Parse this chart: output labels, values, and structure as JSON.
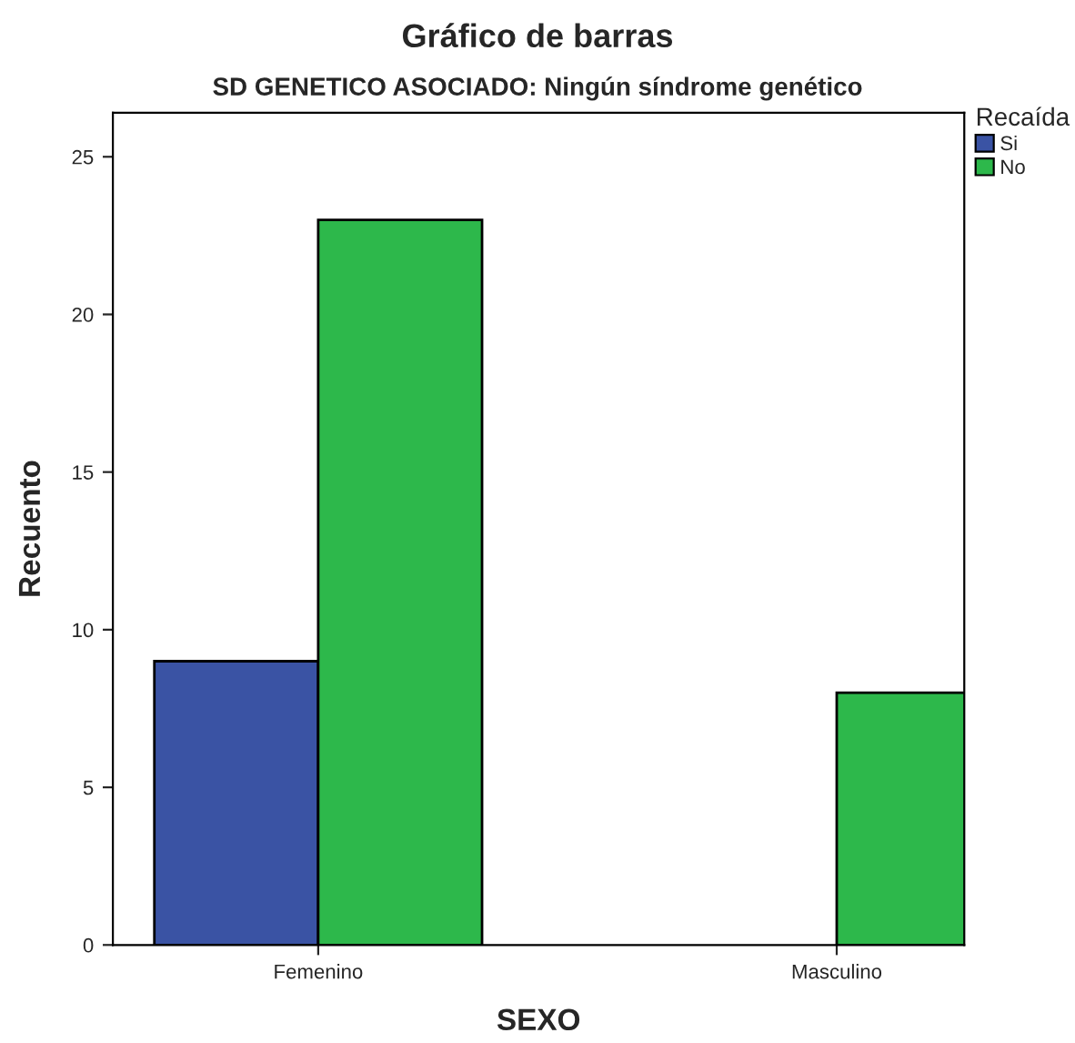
{
  "chart_data": {
    "type": "bar",
    "title": "Gráfico de barras",
    "subtitle": "SD GENETICO ASOCIADO: Ningún síndrome genético",
    "xlabel": "SEXO",
    "ylabel": "Recuento",
    "legend_title": "Recaída",
    "categories": [
      "Femenino",
      "Masculino"
    ],
    "series": [
      {
        "name": "Si",
        "color": "#3a53a4",
        "values": [
          9,
          null
        ]
      },
      {
        "name": "No",
        "color": "#2db84b",
        "values": [
          23,
          8
        ]
      }
    ],
    "ylim": [
      0,
      26.4
    ],
    "yticks": [
      0,
      5,
      10,
      15,
      20,
      25
    ],
    "grid": false,
    "legend": "top right"
  }
}
